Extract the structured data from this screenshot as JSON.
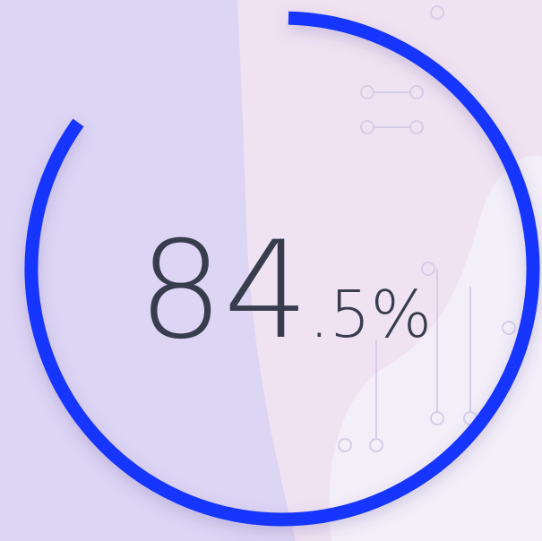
{
  "chart_data": {
    "type": "gauge",
    "values": [
      84.5
    ],
    "value_labels": [
      "84.5%"
    ],
    "ylim": [
      0,
      100
    ],
    "color": "#1436ff"
  }
}
